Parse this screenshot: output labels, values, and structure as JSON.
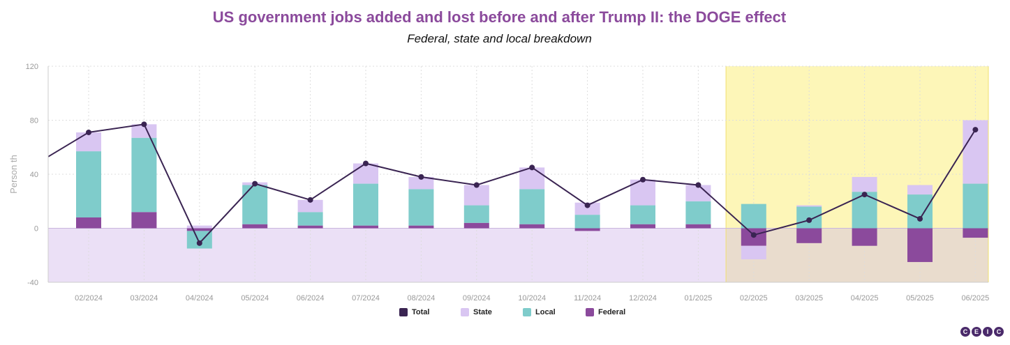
{
  "title": "US government jobs added and lost before and after Trump II: the DOGE effect",
  "subtitle": "Federal, state and local breakdown",
  "logo_letters": [
    "C",
    "E",
    "I",
    "C"
  ],
  "colors": {
    "total": "#3a2452",
    "state": "#d9c6f2",
    "local": "#7fcccb",
    "federal": "#8b4a9c",
    "negative_band": "#ebe0f6",
    "highlight_band": "#fdf5b0",
    "title": "#8b4a9c"
  },
  "chart_data": {
    "type": "bar",
    "stacked": true,
    "categories": [
      "02/2024",
      "03/2024",
      "04/2024",
      "05/2024",
      "06/2024",
      "07/2024",
      "08/2024",
      "09/2024",
      "10/2024",
      "11/2024",
      "12/2024",
      "01/2025",
      "02/2025",
      "03/2025",
      "04/2025",
      "05/2025",
      "06/2025"
    ],
    "series": [
      {
        "name": "Federal",
        "values": [
          8,
          12,
          -2,
          3,
          2,
          2,
          2,
          4,
          3,
          -2,
          3,
          3,
          -13,
          -11,
          -13,
          -25,
          -7
        ]
      },
      {
        "name": "Local",
        "values": [
          49,
          55,
          -13,
          29,
          10,
          31,
          27,
          13,
          26,
          10,
          14,
          17,
          18,
          16,
          27,
          25,
          33
        ]
      },
      {
        "name": "State",
        "values": [
          14,
          10,
          2,
          2,
          9,
          15,
          9,
          15,
          16,
          9,
          19,
          12,
          -10,
          1,
          11,
          7,
          47
        ]
      },
      {
        "name": "Total",
        "type": "line",
        "values": [
          71,
          77,
          -11,
          33,
          21,
          48,
          38,
          32,
          45,
          17,
          36,
          32,
          -5,
          6,
          25,
          7,
          73
        ]
      }
    ],
    "line_start_value": 53,
    "highlight_categories": [
      "02/2025",
      "03/2025",
      "04/2025",
      "05/2025",
      "06/2025"
    ],
    "negative_band": [
      -40,
      0
    ],
    "ylabel": "Person th",
    "xlabel": "",
    "ylim": [
      -40,
      120
    ],
    "yticks": [
      -40,
      0,
      40,
      80,
      120
    ],
    "grid": true,
    "legend": {
      "position": "bottom",
      "entries": [
        "Total",
        "State",
        "Local",
        "Federal"
      ]
    }
  }
}
